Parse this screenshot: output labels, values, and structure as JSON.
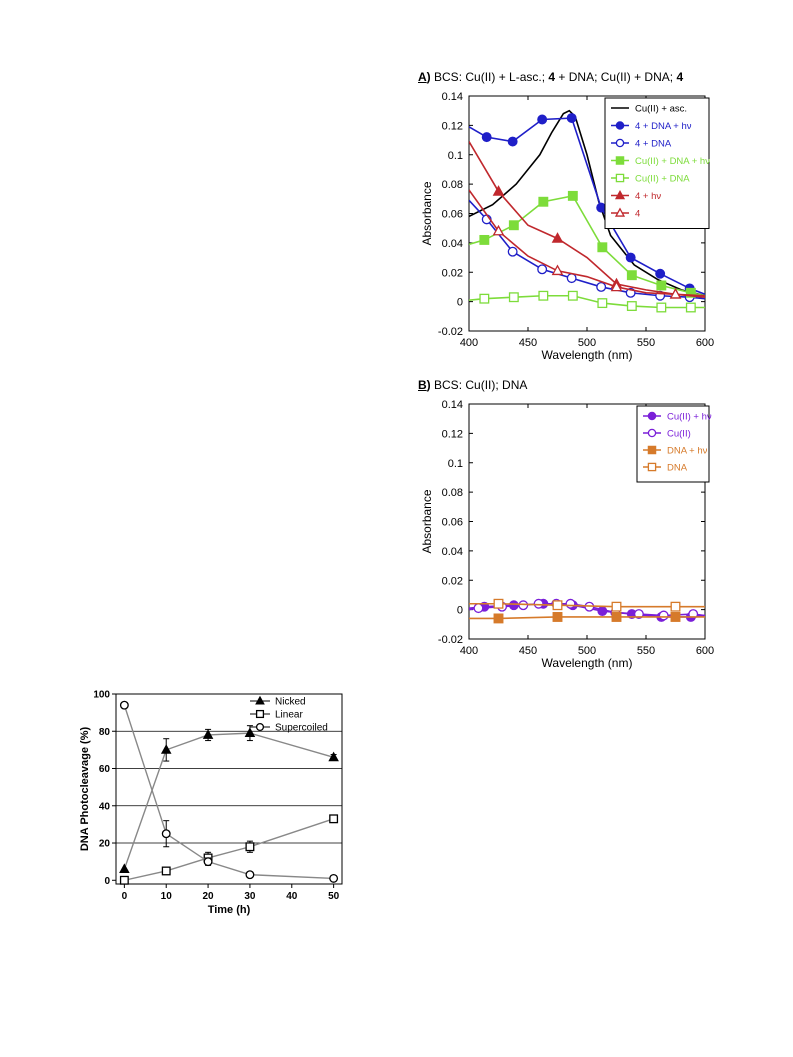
{
  "chart_data": [
    {
      "id": "A",
      "type": "line",
      "title_letter": "A",
      "title_parts": [
        {
          "text": "BCS: Cu(II) + L-asc.; ",
          "bold": false
        },
        {
          "text": "4",
          "bold": true
        },
        {
          "text": " + DNA; Cu(II) + DNA; ",
          "bold": false
        },
        {
          "text": "4",
          "bold": true
        }
      ],
      "xlabel": "Wavelength (nm)",
      "ylabel": "Absorbance",
      "xlim": [
        400,
        600
      ],
      "ylim": [
        -0.02,
        0.14
      ],
      "xticks": [
        400,
        450,
        500,
        550,
        600
      ],
      "xtick_labels": [
        "400",
        "450",
        "500",
        "550",
        "600"
      ],
      "yticks": [
        -0.02,
        0,
        0.02,
        0.04,
        0.06,
        0.08,
        0.1,
        0.12,
        0.14
      ],
      "ytick_labels": [
        "-0.02",
        "0",
        "0.02",
        "0.04",
        "0.06",
        "0.08",
        "0.1",
        "0.12",
        "0.14"
      ],
      "legend_position": "top-right",
      "series": [
        {
          "name": "Cu(II) + asc.",
          "color": "#000000",
          "marker": "none",
          "x": [
            400,
            420,
            440,
            460,
            470,
            480,
            485,
            490,
            500,
            510,
            520,
            540,
            560,
            580,
            600
          ],
          "y": [
            0.058,
            0.066,
            0.08,
            0.1,
            0.115,
            0.128,
            0.13,
            0.126,
            0.1,
            0.068,
            0.045,
            0.025,
            0.015,
            0.008,
            0.004
          ]
        },
        {
          "name": "4 + DNA  + hν",
          "color": "#1f1fc8",
          "marker": "filled-circle",
          "x": [
            400,
            415,
            437,
            462,
            487,
            512,
            537,
            562,
            587,
            600
          ],
          "y": [
            0.119,
            0.112,
            0.109,
            0.124,
            0.125,
            0.064,
            0.03,
            0.019,
            0.009,
            0.005
          ],
          "marker_x": [
            415,
            437,
            462,
            487,
            512,
            537,
            562,
            587
          ]
        },
        {
          "name": "4 + DNA",
          "color": "#1f1fc8",
          "marker": "open-circle",
          "x": [
            400,
            415,
            437,
            462,
            487,
            512,
            537,
            562,
            587,
            600
          ],
          "y": [
            0.069,
            0.056,
            0.034,
            0.022,
            0.016,
            0.01,
            0.006,
            0.004,
            0.003,
            0.002
          ],
          "marker_x": [
            415,
            437,
            462,
            487,
            512,
            537,
            562,
            587
          ]
        },
        {
          "name": "Cu(II) + DNA + hν",
          "color": "#7ddc3a",
          "marker": "filled-square",
          "x": [
            400,
            413,
            438,
            463,
            488,
            513,
            538,
            563,
            588,
            600
          ],
          "y": [
            0.039,
            0.042,
            0.052,
            0.068,
            0.072,
            0.037,
            0.018,
            0.011,
            0.006,
            0.004
          ],
          "marker_x": [
            413,
            438,
            463,
            488,
            513,
            538,
            563,
            588
          ]
        },
        {
          "name": "Cu(II) + DNA",
          "color": "#7ddc3a",
          "marker": "open-square",
          "x": [
            400,
            413,
            438,
            463,
            488,
            513,
            538,
            563,
            588,
            600
          ],
          "y": [
            0.001,
            0.002,
            0.003,
            0.004,
            0.004,
            -0.001,
            -0.003,
            -0.004,
            -0.004,
            -0.004
          ],
          "marker_x": [
            413,
            438,
            463,
            488,
            513,
            538,
            563,
            588
          ]
        },
        {
          "name": "4 + hν",
          "color": "#c0282d",
          "marker": "filled-triangle",
          "x": [
            400,
            425,
            450,
            475,
            500,
            525,
            550,
            575,
            600
          ],
          "y": [
            0.109,
            0.075,
            0.052,
            0.043,
            0.03,
            0.012,
            0.008,
            0.005,
            0.003
          ],
          "marker_x": [
            425,
            475,
            525,
            575
          ]
        },
        {
          "name": "4",
          "color": "#c0282d",
          "marker": "open-triangle",
          "x": [
            400,
            425,
            450,
            475,
            500,
            525,
            550,
            575,
            600
          ],
          "y": [
            0.076,
            0.048,
            0.031,
            0.021,
            0.017,
            0.01,
            0.006,
            0.005,
            0.004
          ],
          "marker_x": [
            425,
            475,
            525,
            575
          ]
        }
      ]
    },
    {
      "id": "B",
      "type": "line",
      "title_letter": "B",
      "title_parts": [
        {
          "text": "BCS: Cu(II); DNA",
          "bold": false
        }
      ],
      "xlabel": "Wavelength (nm)",
      "ylabel": "Absorbance",
      "xlim": [
        400,
        600
      ],
      "ylim": [
        -0.02,
        0.14
      ],
      "xticks": [
        400,
        450,
        500,
        550,
        600
      ],
      "xtick_labels": [
        "400",
        "450",
        "500",
        "550",
        "600"
      ],
      "yticks": [
        -0.02,
        0,
        0.02,
        0.04,
        0.06,
        0.08,
        0.1,
        0.12,
        0.14
      ],
      "ytick_labels": [
        "-0.02",
        "0",
        "0.02",
        "0.04",
        "0.06",
        "0.08",
        "0.1",
        "0.12",
        "0.14"
      ],
      "legend_position": "top-right",
      "series": [
        {
          "name": "Cu(II) + hν",
          "color": "#7a1fd8",
          "marker": "filled-circle",
          "x": [
            400,
            413,
            438,
            463,
            488,
            513,
            538,
            563,
            588,
            600
          ],
          "y": [
            0.001,
            0.002,
            0.003,
            0.004,
            0.003,
            -0.001,
            -0.003,
            -0.005,
            -0.005,
            -0.004
          ],
          "marker_x": [
            413,
            438,
            463,
            488,
            513,
            538,
            563,
            588
          ]
        },
        {
          "name": "Cu(II)",
          "color": "#7a1fd8",
          "marker": "open-circle",
          "x": [
            400,
            408,
            428,
            446,
            459,
            474,
            486,
            502,
            524,
            544,
            565,
            590,
            600
          ],
          "y": [
            0.0,
            0.001,
            0.002,
            0.003,
            0.004,
            0.004,
            0.004,
            0.002,
            -0.002,
            -0.003,
            -0.004,
            -0.003,
            -0.004
          ],
          "marker_x": [
            408,
            428,
            446,
            459,
            474,
            486,
            502,
            524,
            544,
            565,
            590
          ]
        },
        {
          "name": "DNA + hν",
          "color": "#d67a2a",
          "marker": "filled-square",
          "x": [
            400,
            425,
            475,
            525,
            575,
            600
          ],
          "y": [
            -0.006,
            -0.006,
            -0.005,
            -0.005,
            -0.005,
            -0.005
          ],
          "marker_x": [
            425,
            475,
            525,
            575
          ]
        },
        {
          "name": "DNA",
          "color": "#d67a2a",
          "marker": "open-square",
          "x": [
            400,
            425,
            475,
            525,
            575,
            600
          ],
          "y": [
            0.004,
            0.004,
            0.003,
            0.002,
            0.002,
            0.002
          ],
          "marker_x": [
            425,
            475,
            525,
            575
          ]
        }
      ]
    },
    {
      "id": "C",
      "type": "line",
      "title": "",
      "xlabel": "Time (h)",
      "ylabel": "DNA Photocleavage (%)",
      "xlim": [
        -2,
        52
      ],
      "ylim": [
        -2,
        100
      ],
      "xticks": [
        0,
        10,
        20,
        30,
        40,
        50
      ],
      "xtick_labels": [
        "0",
        "10",
        "20",
        "30",
        "40",
        "50"
      ],
      "yticks": [
        0,
        20,
        40,
        60,
        80,
        100
      ],
      "ytick_labels": [
        "0",
        "20",
        "40",
        "60",
        "80",
        "100"
      ],
      "grid": true,
      "legend_position": "top-right",
      "series": [
        {
          "name": "Nicked",
          "color": "#000000",
          "marker": "filled-triangle",
          "x": [
            0,
            10,
            20,
            30,
            50
          ],
          "y": [
            6,
            70,
            78,
            79,
            66
          ],
          "err": [
            0,
            6,
            3,
            4,
            1.5
          ]
        },
        {
          "name": "Linear",
          "color": "#000000",
          "marker": "open-square",
          "x": [
            0,
            10,
            20,
            30,
            50
          ],
          "y": [
            0,
            5,
            12,
            18,
            33
          ],
          "err": [
            0,
            1,
            3,
            3,
            2
          ]
        },
        {
          "name": "Supercoiled",
          "color": "#000000",
          "marker": "open-circle",
          "x": [
            0,
            10,
            20,
            30,
            50
          ],
          "y": [
            94,
            25,
            10,
            3,
            1
          ],
          "err": [
            0,
            7,
            2,
            1,
            0.5
          ]
        }
      ]
    }
  ]
}
